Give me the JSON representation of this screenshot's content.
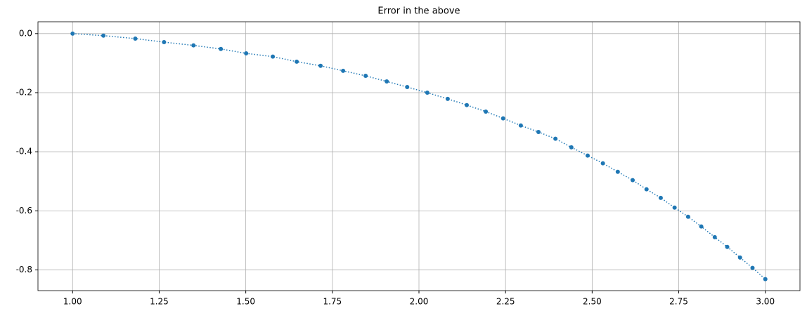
{
  "chart_data": {
    "type": "line",
    "title": "Error in the above",
    "x": [
      1.0,
      1.089,
      1.181,
      1.264,
      1.349,
      1.428,
      1.501,
      1.578,
      1.647,
      1.716,
      1.781,
      1.846,
      1.907,
      1.966,
      2.024,
      2.083,
      2.138,
      2.193,
      2.243,
      2.294,
      2.345,
      2.394,
      2.44,
      2.487,
      2.531,
      2.574,
      2.617,
      2.657,
      2.698,
      2.738,
      2.777,
      2.815,
      2.854,
      2.89,
      2.927,
      2.963,
      3.0
    ],
    "series": [
      {
        "color": "#1f77b4",
        "values": [
          0.0,
          -0.007,
          -0.017,
          -0.029,
          -0.04,
          -0.052,
          -0.067,
          -0.078,
          -0.095,
          -0.109,
          -0.126,
          -0.143,
          -0.162,
          -0.181,
          -0.2,
          -0.221,
          -0.242,
          -0.264,
          -0.287,
          -0.311,
          -0.333,
          -0.356,
          -0.385,
          -0.413,
          -0.439,
          -0.468,
          -0.496,
          -0.527,
          -0.556,
          -0.589,
          -0.62,
          -0.653,
          -0.689,
          -0.722,
          -0.758,
          -0.793,
          -0.831
        ]
      }
    ],
    "xlim": [
      0.9,
      3.1
    ],
    "ylim": [
      -0.87,
      0.04
    ],
    "xticks": [
      {
        "value": 1,
        "label": "1.00"
      },
      1.25,
      {
        "value": 1.5,
        "label": "1.50"
      },
      1.75,
      {
        "value": 2,
        "label": "2.00"
      },
      2.25,
      {
        "value": 2.5,
        "label": "2.50"
      },
      2.75,
      {
        "value": 3,
        "label": "3.00"
      }
    ],
    "yticks": [
      {
        "value": 0,
        "label": "0.0"
      },
      -0.2,
      -0.4,
      -0.6,
      -0.8
    ],
    "grid": true
  }
}
